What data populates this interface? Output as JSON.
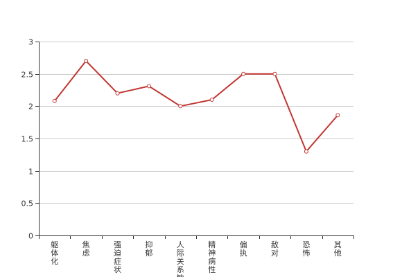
{
  "chart_data": {
    "type": "line",
    "title": "",
    "xlabel": "",
    "ylabel": "",
    "categories": [
      "躯体化",
      "焦虑",
      "强迫症状",
      "抑郁",
      "人际关系敏感",
      "精神病性",
      "偏执",
      "敌对",
      "恐怖",
      "其他"
    ],
    "values": [
      2.08,
      2.7,
      2.2,
      2.31,
      2.0,
      2.1,
      2.5,
      2.5,
      1.3,
      1.86
    ],
    "ylim": [
      0,
      3
    ],
    "yticks": [
      "0",
      "0.5",
      "1",
      "1.5",
      "2",
      "2.5",
      "3"
    ],
    "grid": true,
    "legend": "none"
  },
  "colors": {
    "series": "#c23531",
    "grid": "#cccccc",
    "axis": "#333333",
    "marker_fill": "#ffffff"
  }
}
